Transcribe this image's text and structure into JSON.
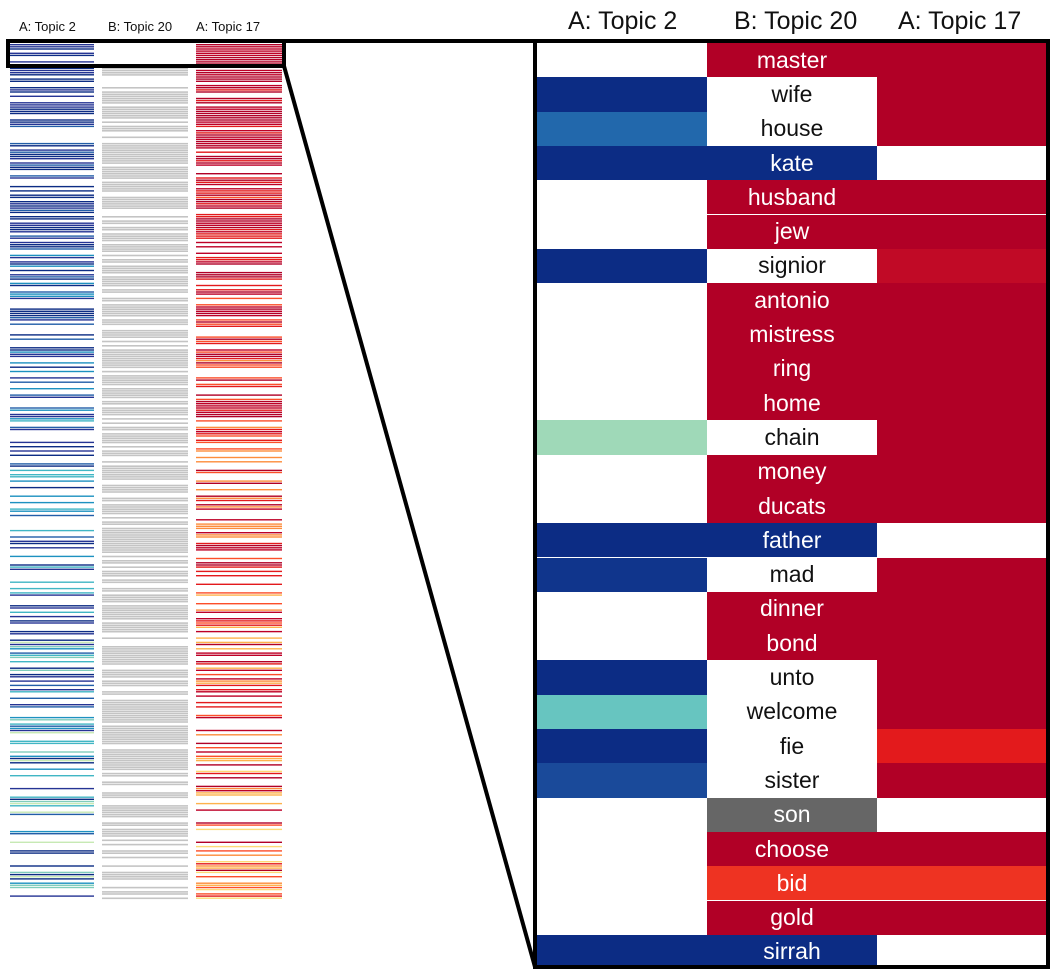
{
  "mini": {
    "labels": [
      "A: Topic 2",
      "B: Topic 20",
      "A: Topic 17"
    ]
  },
  "detail": {
    "headers": [
      "A: Topic 2",
      "B: Topic 20",
      "A: Topic 17"
    ],
    "rows": [
      {
        "word": "master",
        "a": "#ffffff",
        "b": "#b10026",
        "c": "#b10026"
      },
      {
        "word": "wife",
        "a": "#0c2c84",
        "b": "#ffffff",
        "c": "#b10026"
      },
      {
        "word": "house",
        "a": "#2268ac",
        "b": "#ffffff",
        "c": "#b10026"
      },
      {
        "word": "kate",
        "a": "#0c2c84",
        "b": "#0c2c84",
        "c": "#ffffff"
      },
      {
        "word": "husband",
        "a": "#ffffff",
        "b": "#b10026",
        "c": "#b10026"
      },
      {
        "word": "jew",
        "a": "#ffffff",
        "b": "#b10026",
        "c": "#b10026"
      },
      {
        "word": "signior",
        "a": "#0c2c84",
        "b": "#ffffff",
        "c": "#c10a26"
      },
      {
        "word": "antonio",
        "a": "#ffffff",
        "b": "#b10026",
        "c": "#b10026"
      },
      {
        "word": "mistress",
        "a": "#ffffff",
        "b": "#b10026",
        "c": "#b10026"
      },
      {
        "word": "ring",
        "a": "#ffffff",
        "b": "#b10026",
        "c": "#b10026"
      },
      {
        "word": "home",
        "a": "#ffffff",
        "b": "#b10026",
        "c": "#b10026"
      },
      {
        "word": "chain",
        "a": "#9fd9b8",
        "b": "#ffffff",
        "c": "#b10026"
      },
      {
        "word": "money",
        "a": "#ffffff",
        "b": "#b10026",
        "c": "#b10026"
      },
      {
        "word": "ducats",
        "a": "#ffffff",
        "b": "#b10026",
        "c": "#b10026"
      },
      {
        "word": "father",
        "a": "#0c2c84",
        "b": "#0c2c84",
        "c": "#ffffff"
      },
      {
        "word": "mad",
        "a": "#10358c",
        "b": "#ffffff",
        "c": "#b10026"
      },
      {
        "word": "dinner",
        "a": "#ffffff",
        "b": "#b10026",
        "c": "#b10026"
      },
      {
        "word": "bond",
        "a": "#ffffff",
        "b": "#b10026",
        "c": "#b10026"
      },
      {
        "word": "unto",
        "a": "#0c2c84",
        "b": "#ffffff",
        "c": "#b10026"
      },
      {
        "word": "welcome",
        "a": "#67c5c0",
        "b": "#ffffff",
        "c": "#b10026"
      },
      {
        "word": "fie",
        "a": "#0c2c84",
        "b": "#ffffff",
        "c": "#e31a1c"
      },
      {
        "word": "sister",
        "a": "#1a4a9a",
        "b": "#ffffff",
        "c": "#b10026"
      },
      {
        "word": "son",
        "a": "#ffffff",
        "b": "#666666",
        "c": "#ffffff"
      },
      {
        "word": "choose",
        "a": "#ffffff",
        "b": "#b10026",
        "c": "#b10026"
      },
      {
        "word": "bid",
        "a": "#ffffff",
        "b": "#ee3322",
        "c": "#ee3322"
      },
      {
        "word": "gold",
        "a": "#ffffff",
        "b": "#b10026",
        "c": "#b10026"
      },
      {
        "word": "sirrah",
        "a": "#0c2c84",
        "b": "#0c2c84",
        "c": "#ffffff"
      }
    ]
  }
}
